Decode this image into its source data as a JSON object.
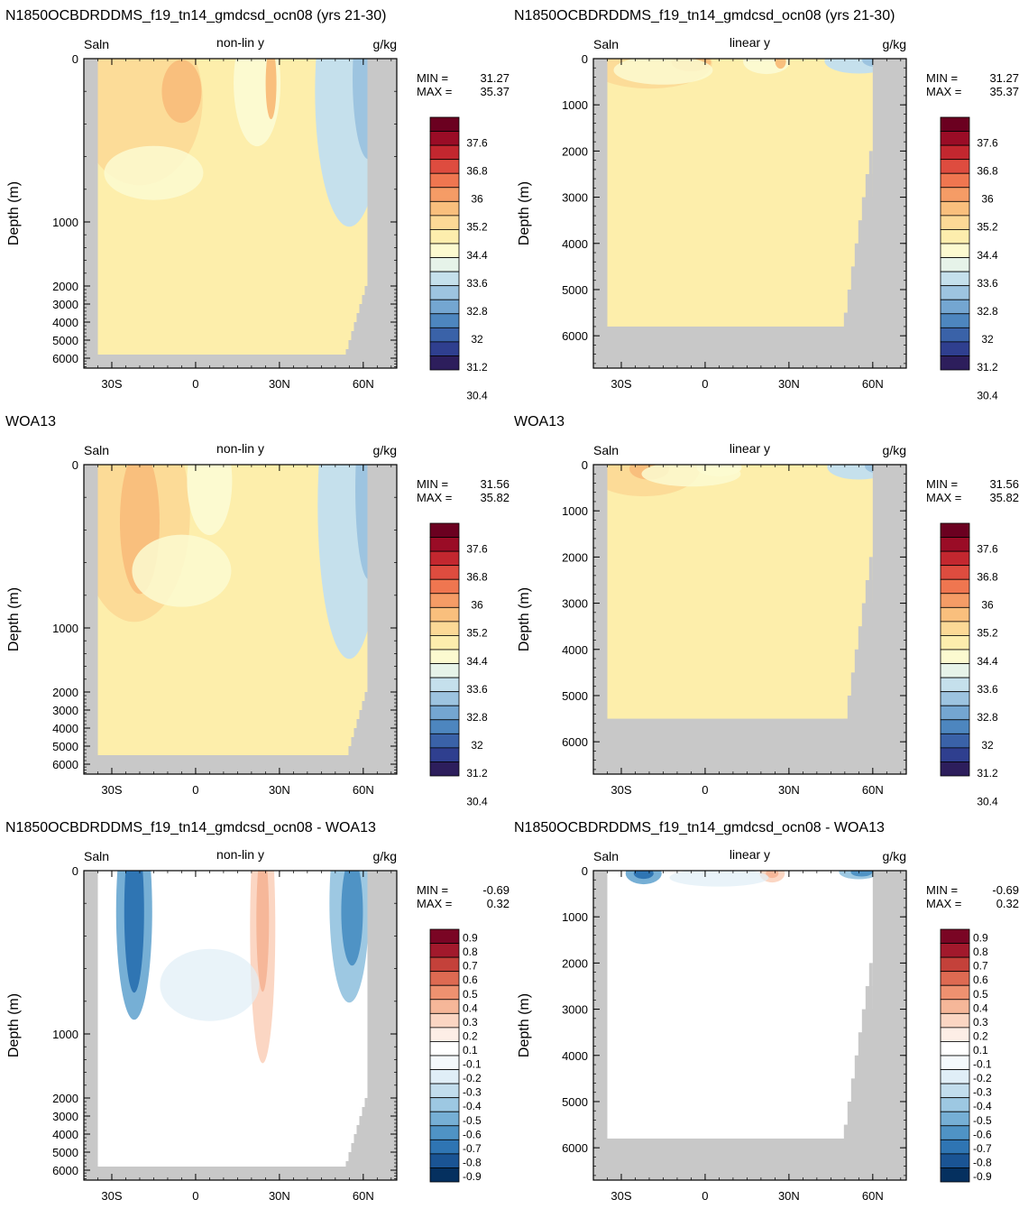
{
  "figure": {
    "row_titles": [
      [
        "N1850OCBDRDDMS_f19_tn14_gmdcsd_ocn08 (yrs 21-30)",
        "N1850OCBDRDDMS_f19_tn14_gmdcsd_ocn08 (yrs 21-30)"
      ],
      [
        "WOA13",
        "WOA13"
      ],
      [
        "N1850OCBDRDDMS_f19_tn14_gmdcsd_ocn08 - WOA13",
        "N1850OCBDRDDMS_f19_tn14_gmdcsd_ocn08 - WOA13"
      ]
    ],
    "panel_left_label": "Saln",
    "panel_right_label": "g/kg",
    "ylabel": "Depth (m)",
    "min_label": "MIN =",
    "max_label": "MAX =",
    "colors": {
      "land": "#c8c8c8",
      "sal_scale": [
        "#2d1e5c",
        "#2f3f8f",
        "#3a62a8",
        "#4d86bf",
        "#74a6d1",
        "#9dc4e0",
        "#c5e0ec",
        "#e6f3e9",
        "#fcfad0",
        "#fdedad",
        "#fcd996",
        "#f9bf7d",
        "#f59c66",
        "#ef7650",
        "#de4c3f",
        "#c3272f",
        "#9a0c26",
        "#6b0020"
      ],
      "diff_scale": [
        "#05305f",
        "#1a5494",
        "#2f75b3",
        "#4f93c5",
        "#76afd5",
        "#9dc8e2",
        "#c2dded",
        "#e0eef7",
        "#f4f9fc",
        "#ffffff",
        "#fdeee6",
        "#fbd6c3",
        "#f6b799",
        "#ee9170",
        "#de6a52",
        "#c4413a",
        "#a2192c",
        "#7a0524"
      ]
    }
  },
  "chart_data": [
    {
      "type": "heatmap",
      "id": "model_nonlin",
      "scale": "sal",
      "title": "N1850OCBDRDDMS_f19_tn14_gmdcsd_ocn08 (yrs 21-30)",
      "subtitle": "non-lin y",
      "xlabel": "",
      "ylabel": "Depth (m)",
      "xlim": [
        -40,
        72
      ],
      "ylim": [
        0,
        6700
      ],
      "ytransform": "nonlinear",
      "yticks": [
        0,
        1000,
        2000,
        3000,
        4000,
        5000,
        6000
      ],
      "yticklabels": [
        "0",
        "1000",
        "2000",
        "3000",
        "4000",
        "5000",
        "6000"
      ],
      "xticks": [
        -30,
        0,
        30,
        60
      ],
      "xticklabels": [
        "30S",
        "0",
        "30N",
        "60N"
      ],
      "min": "31.27",
      "max": "35.37",
      "levels": [
        "37.6",
        "36.8",
        "36",
        "35.2",
        "34.4",
        "33.6",
        "32.8",
        "32",
        "31.2",
        "30.4"
      ]
    },
    {
      "type": "heatmap",
      "id": "model_lin",
      "scale": "sal",
      "title": "N1850OCBDRDDMS_f19_tn14_gmdcsd_ocn08 (yrs 21-30)",
      "subtitle": "linear y",
      "xlabel": "",
      "ylabel": "Depth (m)",
      "xlim": [
        -40,
        72
      ],
      "ylim": [
        0,
        6700
      ],
      "ytransform": "linear",
      "yticks": [
        0,
        1000,
        2000,
        3000,
        4000,
        5000,
        6000
      ],
      "yticklabels": [
        "0",
        "1000",
        "2000",
        "3000",
        "4000",
        "5000",
        "6000"
      ],
      "xticks": [
        -30,
        0,
        30,
        60
      ],
      "xticklabels": [
        "30S",
        "0",
        "30N",
        "60N"
      ],
      "min": "31.27",
      "max": "35.37",
      "levels": [
        "37.6",
        "36.8",
        "36",
        "35.2",
        "34.4",
        "33.6",
        "32.8",
        "32",
        "31.2",
        "30.4"
      ]
    },
    {
      "type": "heatmap",
      "id": "woa_nonlin",
      "scale": "sal",
      "title": "WOA13",
      "subtitle": "non-lin y",
      "xlabel": "",
      "ylabel": "Depth (m)",
      "xlim": [
        -40,
        72
      ],
      "ylim": [
        0,
        6700
      ],
      "ytransform": "nonlinear",
      "yticks": [
        0,
        1000,
        2000,
        3000,
        4000,
        5000,
        6000
      ],
      "yticklabels": [
        "0",
        "1000",
        "2000",
        "3000",
        "4000",
        "5000",
        "6000"
      ],
      "xticks": [
        -30,
        0,
        30,
        60
      ],
      "xticklabels": [
        "30S",
        "0",
        "30N",
        "60N"
      ],
      "min": "31.56",
      "max": "35.82",
      "levels": [
        "37.6",
        "36.8",
        "36",
        "35.2",
        "34.4",
        "33.6",
        "32.8",
        "32",
        "31.2",
        "30.4"
      ]
    },
    {
      "type": "heatmap",
      "id": "woa_lin",
      "scale": "sal",
      "title": "WOA13",
      "subtitle": "linear y",
      "xlabel": "",
      "ylabel": "Depth (m)",
      "xlim": [
        -40,
        72
      ],
      "ylim": [
        0,
        6700
      ],
      "ytransform": "linear",
      "yticks": [
        0,
        1000,
        2000,
        3000,
        4000,
        5000,
        6000
      ],
      "yticklabels": [
        "0",
        "1000",
        "2000",
        "3000",
        "4000",
        "5000",
        "6000"
      ],
      "xticks": [
        -30,
        0,
        30,
        60
      ],
      "xticklabels": [
        "30S",
        "0",
        "30N",
        "60N"
      ],
      "min": "31.56",
      "max": "35.82",
      "levels": [
        "37.6",
        "36.8",
        "36",
        "35.2",
        "34.4",
        "33.6",
        "32.8",
        "32",
        "31.2",
        "30.4"
      ]
    },
    {
      "type": "heatmap",
      "id": "diff_nonlin",
      "scale": "diff",
      "title": "N1850OCBDRDDMS_f19_tn14_gmdcsd_ocn08 - WOA13",
      "subtitle": "non-lin y",
      "xlabel": "",
      "ylabel": "Depth (m)",
      "xlim": [
        -40,
        72
      ],
      "ylim": [
        0,
        6700
      ],
      "ytransform": "nonlinear",
      "yticks": [
        0,
        1000,
        2000,
        3000,
        4000,
        5000,
        6000
      ],
      "yticklabels": [
        "0",
        "1000",
        "2000",
        "3000",
        "4000",
        "5000",
        "6000"
      ],
      "xticks": [
        -30,
        0,
        30,
        60
      ],
      "xticklabels": [
        "30S",
        "0",
        "30N",
        "60N"
      ],
      "min": "-0.69",
      "max": "0.32",
      "levels": [
        "0.9",
        "0.8",
        "0.7",
        "0.6",
        "0.5",
        "0.4",
        "0.3",
        "0.2",
        "0.1",
        "-0.1",
        "-0.2",
        "-0.3",
        "-0.4",
        "-0.5",
        "-0.6",
        "-0.7",
        "-0.8",
        "-0.9"
      ]
    },
    {
      "type": "heatmap",
      "id": "diff_lin",
      "scale": "diff",
      "title": "N1850OCBDRDDMS_f19_tn14_gmdcsd_ocn08 - WOA13",
      "subtitle": "linear y",
      "xlabel": "",
      "ylabel": "Depth (m)",
      "xlim": [
        -40,
        72
      ],
      "ylim": [
        0,
        6700
      ],
      "ytransform": "linear",
      "yticks": [
        0,
        1000,
        2000,
        3000,
        4000,
        5000,
        6000
      ],
      "yticklabels": [
        "0",
        "1000",
        "2000",
        "3000",
        "4000",
        "5000",
        "6000"
      ],
      "xticks": [
        -30,
        0,
        30,
        60
      ],
      "xticklabels": [
        "30S",
        "0",
        "30N",
        "60N"
      ],
      "min": "-0.69",
      "max": "0.32",
      "levels": [
        "0.9",
        "0.8",
        "0.7",
        "0.6",
        "0.5",
        "0.4",
        "0.3",
        "0.2",
        "0.1",
        "-0.1",
        "-0.2",
        "-0.3",
        "-0.4",
        "-0.5",
        "-0.6",
        "-0.7",
        "-0.8",
        "-0.9"
      ]
    }
  ]
}
